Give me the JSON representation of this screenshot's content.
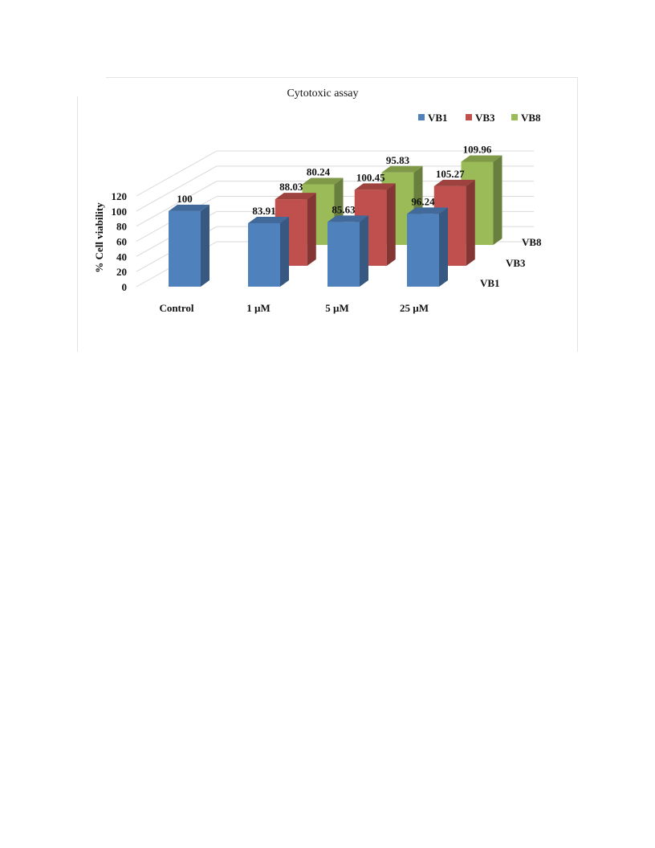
{
  "chart_data": {
    "type": "bar",
    "subtype": "3d-column",
    "title": "Cytotoxic assay",
    "ylabel": "% Cell viability",
    "xlabel": "",
    "ylim": [
      0,
      120
    ],
    "yticks": [
      "0",
      "20",
      "40",
      "60",
      "80",
      "100",
      "120"
    ],
    "categories": [
      "Control",
      "1 µM",
      "5 µM",
      "25 µM"
    ],
    "series": [
      {
        "name": "VB1",
        "color": "#4f81bd",
        "values": [
          100,
          83.91,
          85.63,
          96.24
        ],
        "labels": [
          "100",
          "83.91",
          "85.63",
          "96.24"
        ]
      },
      {
        "name": "VB3",
        "color": "#c0504d",
        "values": [
          null,
          88.03,
          100.45,
          105.27
        ],
        "labels": [
          "",
          "88.03",
          "100.45",
          "105.27"
        ]
      },
      {
        "name": "VB8",
        "color": "#9bbb59",
        "values": [
          null,
          80.24,
          95.83,
          109.96
        ],
        "labels": [
          "",
          "80.24",
          "95.83",
          "109.96"
        ]
      }
    ],
    "legend": "top-right",
    "grid": true
  }
}
